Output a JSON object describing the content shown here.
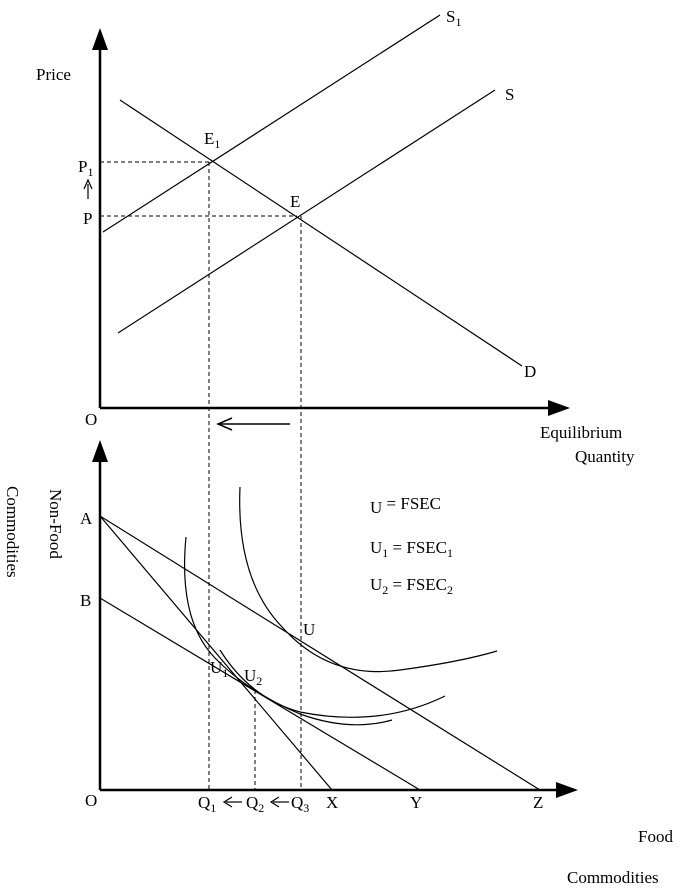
{
  "top": {
    "y_axis_label": "Price",
    "x_axis_label_line1": "Equilibrium",
    "x_axis_label_line2": "Quantity",
    "origin": "O",
    "supply_1_label": "S",
    "supply_1_sub": "1",
    "supply_label": "S",
    "demand_label": "D",
    "eq_1_label": "E",
    "eq_1_sub": "1",
    "eq_label": "E",
    "price_1_label": "P",
    "price_1_sub": "1",
    "price_label": "P"
  },
  "bottom": {
    "y_axis_label_line1": "Non-Food",
    "y_axis_label_line2": "Commodities",
    "x_axis_label_line1": "Food",
    "x_axis_label_line2": "Commodities",
    "origin": "O",
    "point_a": "A",
    "point_b": "B",
    "point_x": "X",
    "point_y": "Y",
    "point_z": "Z",
    "q1": "Q",
    "q1_sub": "1",
    "q2": "Q",
    "q2_sub": "2",
    "q3": "Q",
    "q3_sub": "3",
    "u_label": "U",
    "u1_label": "U",
    "u1_sub": "1",
    "u2_label": "U",
    "u2_sub": "2",
    "legend": [
      {
        "lhs": "U",
        "lhs_sub": "",
        "rhs": "FSEC",
        "rhs_sub": ""
      },
      {
        "lhs": "U",
        "lhs_sub": "1",
        "rhs": "FSEC",
        "rhs_sub": "1"
      },
      {
        "lhs": "U",
        "lhs_sub": "2",
        "rhs": "FSEC",
        "rhs_sub": "2"
      }
    ]
  }
}
